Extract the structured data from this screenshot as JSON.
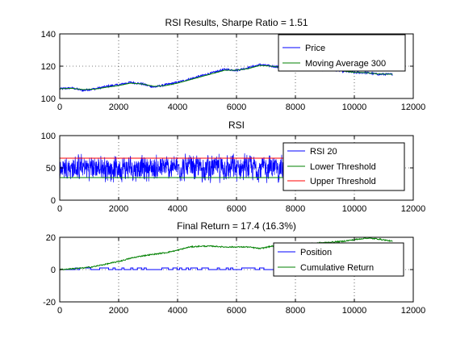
{
  "colors": {
    "blue": "#0000ff",
    "green": "#008000",
    "red": "#ff0000",
    "background": "#ffffff"
  },
  "chart_data": [
    {
      "type": "line",
      "title": "RSI Results, Sharpe Ratio = 1.51",
      "xlabel": "",
      "ylabel": "",
      "xlim": [
        0,
        12000
      ],
      "ylim": [
        100,
        140
      ],
      "xticks": [
        0,
        2000,
        4000,
        6000,
        8000,
        10000,
        12000
      ],
      "yticks": [
        100,
        120,
        140
      ],
      "grid": true,
      "legend": "top-right",
      "series": [
        {
          "name": "Price",
          "color": "#0000ff",
          "style": "noisy",
          "noise": 0.6,
          "x": [
            0,
            400,
            800,
            1200,
            1600,
            2000,
            2400,
            2800,
            3200,
            3600,
            4000,
            4400,
            4800,
            5200,
            5600,
            6000,
            6400,
            6800,
            7200,
            7600,
            8000,
            8400,
            8800,
            9200,
            9600,
            10000,
            10400,
            10800,
            11300
          ],
          "values": [
            106,
            106.5,
            105,
            106,
            107.5,
            108.5,
            110,
            109,
            107,
            108.5,
            110,
            112,
            114,
            116,
            118,
            117.5,
            119,
            121,
            120,
            119,
            118,
            119,
            118,
            118,
            117,
            116,
            116,
            115,
            115
          ]
        },
        {
          "name": "Moving Average 300",
          "color": "#008000",
          "style": "smooth",
          "x": [
            0,
            400,
            800,
            1200,
            1600,
            2000,
            2400,
            2800,
            3200,
            3600,
            4000,
            4400,
            4800,
            5200,
            5600,
            6000,
            6400,
            6800,
            7200,
            7600,
            8000,
            8400,
            8800,
            9200,
            9600,
            10000,
            10400,
            10800,
            11300
          ],
          "values": [
            106,
            106.3,
            105.5,
            105.8,
            107,
            108,
            109.5,
            109,
            107.5,
            108,
            109.5,
            111.5,
            113.5,
            115.5,
            117.5,
            117.5,
            118.5,
            120.5,
            120,
            119,
            118.5,
            118.5,
            118,
            118,
            117,
            116.2,
            116,
            115.2,
            115
          ]
        }
      ]
    },
    {
      "type": "line",
      "title": "RSI",
      "xlabel": "",
      "ylabel": "",
      "xlim": [
        0,
        12000
      ],
      "ylim": [
        0,
        100
      ],
      "xticks": [
        0,
        2000,
        4000,
        6000,
        8000,
        10000,
        12000
      ],
      "yticks": [
        0,
        50,
        100
      ],
      "grid": true,
      "legend": "top-right",
      "series": [
        {
          "name": "RSI 20",
          "color": "#0000ff",
          "style": "oscillation",
          "xmax": 11300,
          "center": 50,
          "amplitude": 28,
          "min": 5,
          "max": 95
        },
        {
          "name": "Lower Threshold",
          "color": "#008000",
          "style": "flat",
          "x": [
            0,
            11300
          ],
          "values": [
            35,
            35
          ]
        },
        {
          "name": "Upper Threshold",
          "color": "#ff0000",
          "style": "flat",
          "x": [
            0,
            11300
          ],
          "values": [
            65,
            65
          ]
        }
      ]
    },
    {
      "type": "line",
      "title": "Final Return = 17.4 (16.3%)",
      "xlabel": "",
      "ylabel": "",
      "xlim": [
        0,
        12000
      ],
      "ylim": [
        -20,
        20
      ],
      "xticks": [
        0,
        2000,
        4000,
        6000,
        8000,
        10000,
        12000
      ],
      "yticks": [
        -20,
        0,
        20
      ],
      "grid": true,
      "legend": "top-right",
      "series": [
        {
          "name": "Position",
          "color": "#0000ff",
          "style": "steps",
          "xmax": 11300,
          "levels": [
            0,
            1
          ]
        },
        {
          "name": "Cumulative Return",
          "color": "#008000",
          "style": "noisy",
          "noise": 0.35,
          "x": [
            0,
            400,
            800,
            1200,
            1600,
            2000,
            2400,
            2800,
            3200,
            3600,
            4000,
            4400,
            4800,
            5200,
            5600,
            6000,
            6400,
            6800,
            7200,
            7600,
            8000,
            8400,
            8800,
            9200,
            9600,
            10000,
            10400,
            10800,
            11300
          ],
          "values": [
            0,
            0.5,
            1,
            2,
            3.5,
            5,
            7,
            8.5,
            9.5,
            10.5,
            12,
            14,
            14.5,
            14.5,
            14,
            14,
            14,
            13,
            14.5,
            15,
            15.5,
            16,
            16.5,
            17,
            17.5,
            18.5,
            19.5,
            19,
            17.5
          ]
        }
      ]
    }
  ]
}
